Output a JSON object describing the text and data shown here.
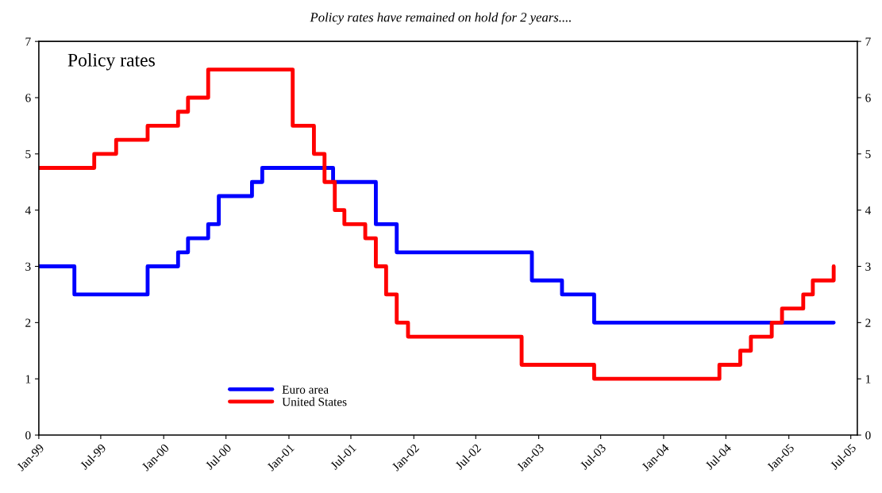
{
  "chart_data": {
    "type": "step",
    "title": "Policy rates have remained on hold for 2 years....",
    "annotations": [
      "Policy rates"
    ],
    "series": [
      {
        "name": "Euro area",
        "color": "#0000ff",
        "x": [
          "1999-01-01",
          "1999-04-15",
          "1999-11-15",
          "2000-02-12",
          "2000-03-12",
          "2000-05-10",
          "2000-06-10",
          "2000-09-15",
          "2000-10-15",
          "2001-05-10",
          "2001-09-12",
          "2001-11-12",
          "2002-12-12",
          "2003-03-10",
          "2003-06-12",
          "2005-05-12"
        ],
        "values": [
          3.0,
          2.5,
          3.0,
          3.25,
          3.5,
          3.75,
          4.25,
          4.5,
          4.75,
          4.5,
          3.75,
          3.25,
          2.75,
          2.5,
          2.0,
          2.0
        ]
      },
      {
        "name": "United States",
        "color": "#ff0000",
        "x": [
          "1999-01-01",
          "1999-06-12",
          "1999-08-15",
          "1999-11-15",
          "2000-02-12",
          "2000-03-12",
          "2000-05-10",
          "2001-01-12",
          "2001-03-15",
          "2001-04-15",
          "2001-05-15",
          "2001-06-12",
          "2001-08-12",
          "2001-09-12",
          "2001-10-12",
          "2001-11-12",
          "2001-12-15",
          "2002-11-12",
          "2003-06-12",
          "2004-06-12",
          "2004-08-12",
          "2004-09-12",
          "2004-11-12",
          "2004-12-12",
          "2005-02-12",
          "2005-03-12",
          "2005-05-12"
        ],
        "values": [
          4.75,
          5.0,
          5.25,
          5.5,
          5.75,
          6.0,
          6.5,
          5.5,
          5.0,
          4.5,
          4.0,
          3.75,
          3.5,
          3.0,
          2.5,
          2.0,
          1.75,
          1.25,
          1.0,
          1.25,
          1.5,
          1.75,
          2.0,
          2.25,
          2.5,
          2.75,
          3.0
        ]
      }
    ],
    "xlim": [
      "1999-01-01",
      "2005-07-20"
    ],
    "xticks": [
      {
        "value": "1999-01-01",
        "label": "Jan-99"
      },
      {
        "value": "1999-07-01",
        "label": "Jul-99"
      },
      {
        "value": "2000-01-01",
        "label": "Jan-00"
      },
      {
        "value": "2000-07-01",
        "label": "Jul-00"
      },
      {
        "value": "2001-01-01",
        "label": "Jan-01"
      },
      {
        "value": "2001-07-01",
        "label": "Jul-01"
      },
      {
        "value": "2002-01-01",
        "label": "Jan-02"
      },
      {
        "value": "2002-07-01",
        "label": "Jul-02"
      },
      {
        "value": "2003-01-01",
        "label": "Jan-03"
      },
      {
        "value": "2003-07-01",
        "label": "Jul-03"
      },
      {
        "value": "2004-01-01",
        "label": "Jan-04"
      },
      {
        "value": "2004-07-01",
        "label": "Jul-04"
      },
      {
        "value": "2005-01-01",
        "label": "Jan-05"
      },
      {
        "value": "2005-07-01",
        "label": "Jul-05"
      }
    ],
    "ylim": [
      0,
      7
    ],
    "yticks": [
      0,
      1,
      2,
      3,
      4,
      5,
      6,
      7
    ],
    "y2lim": [
      0,
      7
    ],
    "y2ticks": [
      0,
      1,
      2,
      3,
      4,
      5,
      6,
      7
    ],
    "grid": false,
    "legend": "bottom left",
    "line_style": "solid"
  }
}
